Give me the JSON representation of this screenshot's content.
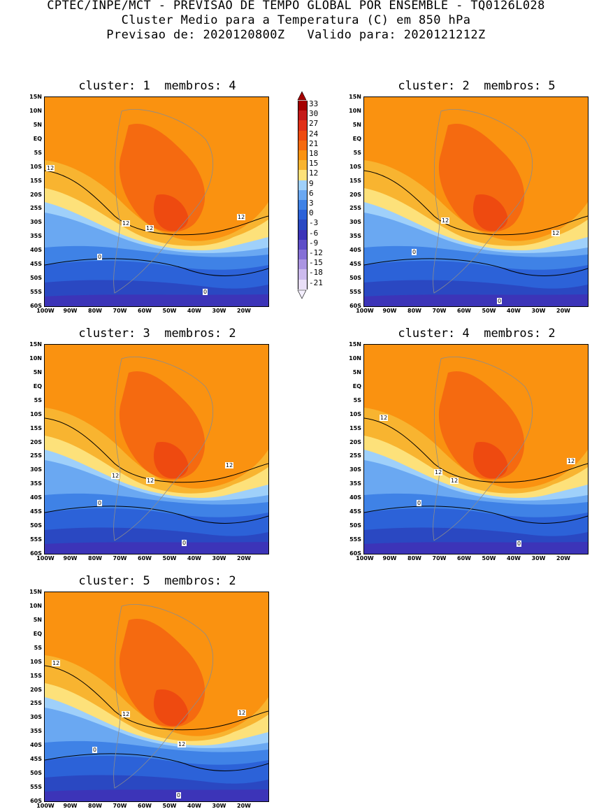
{
  "header": {
    "line1": "CPTEC/INPE/MCT - PREVISAO DE TEMPO GLOBAL POR ENSEMBLE - TQ0126L028",
    "line2": "Cluster Medio para a Temperatura (C) em 850 hPa",
    "line3": "Previsao de: 2020120800Z   Valido para: 2020121212Z"
  },
  "panels": [
    {
      "title": "cluster: 1  membros: 4"
    },
    {
      "title": "cluster: 2  membros: 5"
    },
    {
      "title": "cluster: 3  membros: 2"
    },
    {
      "title": "cluster: 4  membros: 2"
    },
    {
      "title": "cluster: 5  membros: 2"
    }
  ],
  "axes": {
    "lat_ticks": [
      "15N",
      "10N",
      "5N",
      "EQ",
      "5S",
      "10S",
      "15S",
      "20S",
      "25S",
      "30S",
      "35S",
      "40S",
      "45S",
      "50S",
      "55S",
      "60S"
    ],
    "lon_ticks": [
      "100W",
      "90W",
      "80W",
      "70W",
      "60W",
      "50W",
      "40W",
      "30W",
      "20W"
    ]
  },
  "colorbar": {
    "labels": [
      "33",
      "30",
      "27",
      "24",
      "21",
      "18",
      "15",
      "12",
      "9",
      "6",
      "3",
      "0",
      "-3",
      "-6",
      "-9",
      "-12",
      "-15",
      "-18",
      "-21"
    ],
    "colors": [
      "#a40000",
      "#c41a1a",
      "#e03018",
      "#ee4a10",
      "#f56a10",
      "#fa9210",
      "#f8b430",
      "#fde17a",
      "#9fd0fa",
      "#6aa8f2",
      "#3f82e6",
      "#2c62d8",
      "#2a48c2",
      "#3c34b8",
      "#5e4ec8",
      "#8670d6",
      "#ab95e2",
      "#cdbbee",
      "#e9dff7"
    ]
  },
  "contour_labels": [
    [
      "12",
      "12",
      "12",
      "12",
      "0",
      "0"
    ],
    [
      "12",
      "12",
      "0",
      "0"
    ],
    [
      "12",
      "12",
      "12",
      "0",
      "0"
    ],
    [
      "12",
      "12",
      "12",
      "12",
      "0",
      "0"
    ],
    [
      "12",
      "12",
      "12",
      "12",
      "0",
      "0"
    ]
  ]
}
